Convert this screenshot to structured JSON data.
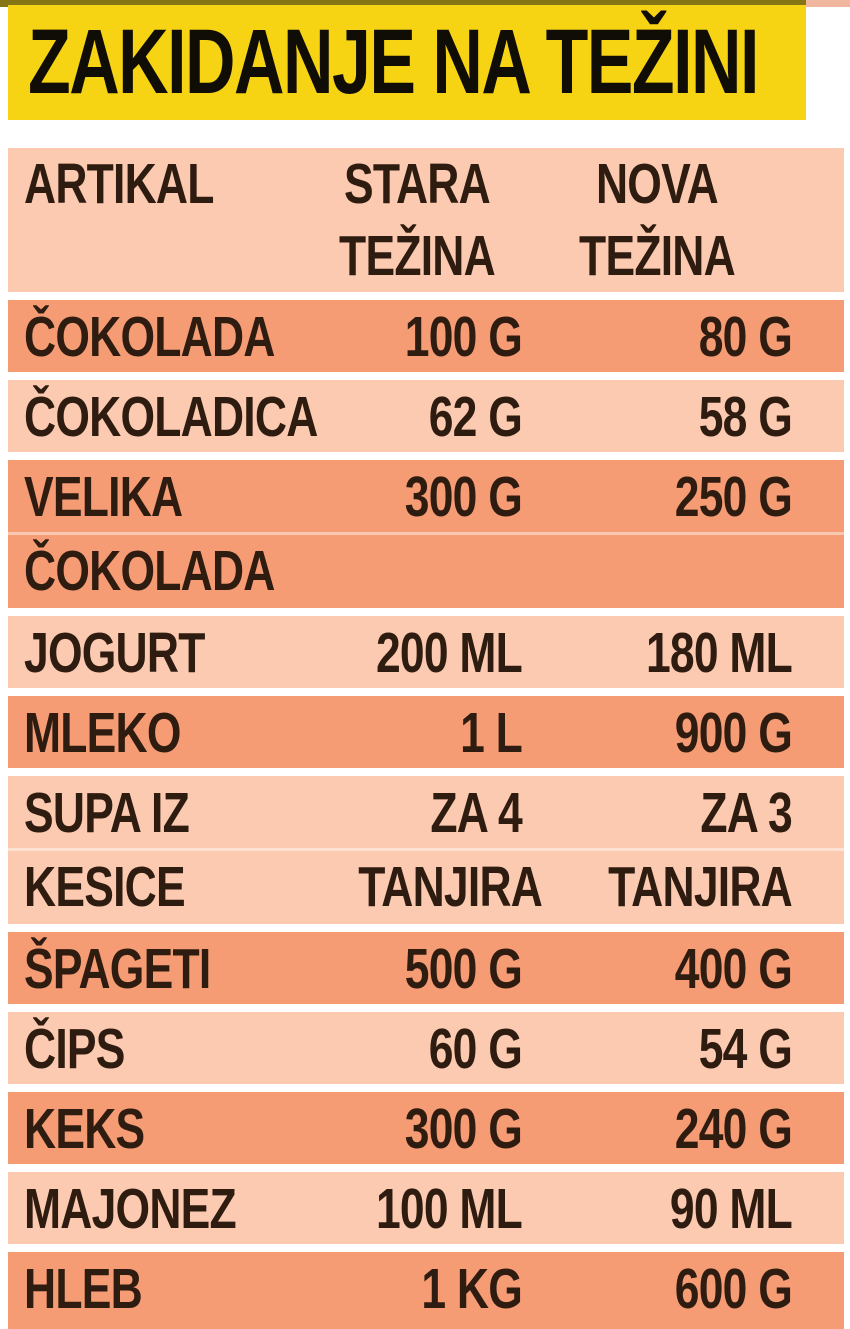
{
  "title": "ZAKIDANJE NA TEŽINI",
  "colors": {
    "banner_bg": "#F6D313",
    "banner_text": "#100C06",
    "row_light": "#FCCAB1",
    "row_dark": "#F59C75",
    "text": "#2F1C10",
    "page_bg": "#FFFFFF"
  },
  "table": {
    "headers": {
      "artikal": [
        "ARTIKAL"
      ],
      "stara": [
        "STARA",
        "TEŽINA"
      ],
      "nova": [
        "NOVA",
        "TEŽINA"
      ]
    },
    "rows": [
      {
        "name": [
          "ČOKOLADA"
        ],
        "old": [
          "100 G"
        ],
        "new": [
          "80 G"
        ],
        "shade": "dark"
      },
      {
        "name": [
          "ČOKOLADICA"
        ],
        "old": [
          "62 G"
        ],
        "new": [
          "58 G"
        ],
        "shade": "light"
      },
      {
        "name": [
          "VELIKA",
          "ČOKOLADA"
        ],
        "old": [
          "300 G"
        ],
        "new": [
          "250 G"
        ],
        "shade": "dark"
      },
      {
        "name": [
          "JOGURT"
        ],
        "old": [
          "200 ML"
        ],
        "new": [
          "180 ML"
        ],
        "shade": "light"
      },
      {
        "name": [
          "MLEKO"
        ],
        "old": [
          "1 L"
        ],
        "new": [
          "900 G"
        ],
        "shade": "dark"
      },
      {
        "name": [
          "SUPA IZ",
          "KESICE"
        ],
        "old": [
          "ZA 4",
          "TANJIRA"
        ],
        "new": [
          "ZA 3",
          "TANJIRA"
        ],
        "shade": "light"
      },
      {
        "name": [
          "ŠPAGETI"
        ],
        "old": [
          "500 G"
        ],
        "new": [
          "400 G"
        ],
        "shade": "dark"
      },
      {
        "name": [
          "ČIPS"
        ],
        "old": [
          "60 G"
        ],
        "new": [
          "54 G"
        ],
        "shade": "light"
      },
      {
        "name": [
          "KEKS"
        ],
        "old": [
          "300 G"
        ],
        "new": [
          "240 G"
        ],
        "shade": "dark"
      },
      {
        "name": [
          "MAJONEZ"
        ],
        "old": [
          "100 ML"
        ],
        "new": [
          "90 ML"
        ],
        "shade": "light"
      },
      {
        "name": [
          "HLEB"
        ],
        "old": [
          "1 KG"
        ],
        "new": [
          "600 G"
        ],
        "shade": "dark"
      }
    ]
  },
  "chart_data": {
    "type": "table",
    "title": "ZAKIDANJE NA TEŽINI",
    "columns": [
      "ARTIKAL",
      "STARA TEŽINA",
      "NOVA TEŽINA"
    ],
    "rows": [
      [
        "ČOKOLADA",
        "100 G",
        "80 G"
      ],
      [
        "ČOKOLADICA",
        "62 G",
        "58 G"
      ],
      [
        "VELIKA ČOKOLADA",
        "300 G",
        "250 G"
      ],
      [
        "JOGURT",
        "200 ML",
        "180 ML"
      ],
      [
        "MLEKO",
        "1 L",
        "900 G"
      ],
      [
        "SUPA IZ KESICE",
        "ZA 4 TANJIRA",
        "ZA 3 TANJIRA"
      ],
      [
        "ŠPAGETI",
        "500 G",
        "400 G"
      ],
      [
        "ČIPS",
        "60 G",
        "54 G"
      ],
      [
        "KEKS",
        "300 G",
        "240 G"
      ],
      [
        "MAJONEZ",
        "100 ML",
        "90 ML"
      ],
      [
        "HLEB",
        "1 KG",
        "600 G"
      ]
    ]
  }
}
